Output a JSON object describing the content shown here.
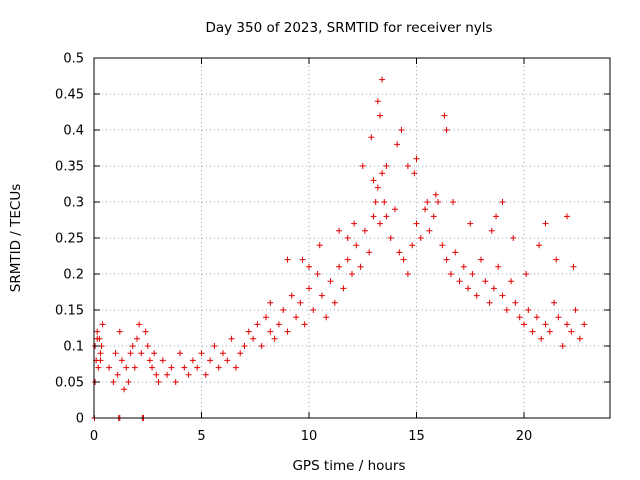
{
  "chart_data": {
    "type": "scatter",
    "title": "Day 350 of 2023, SRMTID for receiver nyls",
    "xlabel": "GPS time / hours",
    "ylabel": "SRMTID / TECUs",
    "xlim": [
      0,
      24
    ],
    "ylim": [
      0,
      0.5
    ],
    "xticks": [
      0,
      5,
      10,
      15,
      20
    ],
    "xtick_labels": [
      "0",
      "5",
      "10",
      "15",
      "20"
    ],
    "yticks": [
      0,
      0.05,
      0.1,
      0.15,
      0.2,
      0.25,
      0.3,
      0.35,
      0.4,
      0.45,
      0.5
    ],
    "ytick_labels": [
      "0",
      "0.05",
      "0.1",
      "0.15",
      "0.2",
      "0.25",
      "0.3",
      "0.35",
      "0.4",
      "0.45",
      "0.5"
    ],
    "grid": true,
    "marker": "+",
    "marker_color": "#e00000",
    "series": [
      {
        "name": "SRMTID",
        "x": [
          0.05,
          0.1,
          0.15,
          0.2,
          0.25,
          0.3,
          0.35,
          0.4,
          0.05,
          0.15,
          0.3,
          0.02,
          1.15,
          1.2,
          2.25,
          2.3,
          0.7,
          0.9,
          1.0,
          1.1,
          1.2,
          1.3,
          1.4,
          1.5,
          1.6,
          1.7,
          1.8,
          1.9,
          2.0,
          2.1,
          2.2,
          2.4,
          2.5,
          2.6,
          2.7,
          2.8,
          2.9,
          3.0,
          3.2,
          3.4,
          3.6,
          3.8,
          4.0,
          4.2,
          4.4,
          4.6,
          4.8,
          5.0,
          5.2,
          5.4,
          5.6,
          5.8,
          6.0,
          6.2,
          6.4,
          6.6,
          6.8,
          7.0,
          7.2,
          7.4,
          7.6,
          7.8,
          8.0,
          8.2,
          8.4,
          8.6,
          8.8,
          9.0,
          9.2,
          9.4,
          9.6,
          9.8,
          10.0,
          10.2,
          10.4,
          10.6,
          10.8,
          11.0,
          11.2,
          11.4,
          11.6,
          11.8,
          12.0,
          12.2,
          12.4,
          12.6,
          12.8,
          13.0,
          13.1,
          13.2,
          13.3,
          13.4,
          13.5,
          13.6,
          13.8,
          14.0,
          14.2,
          14.4,
          14.6,
          14.8,
          15.0,
          15.2,
          15.4,
          15.6,
          15.8,
          16.0,
          16.2,
          16.4,
          16.6,
          16.8,
          17.0,
          17.2,
          17.4,
          17.6,
          17.8,
          18.0,
          18.2,
          18.4,
          18.6,
          18.8,
          19.0,
          19.2,
          19.4,
          19.6,
          19.8,
          20.0,
          20.2,
          20.4,
          20.6,
          20.8,
          21.0,
          21.2,
          21.4,
          21.6,
          21.8,
          22.0,
          22.2,
          22.4,
          22.6,
          22.8,
          13.2,
          13.4,
          13.3,
          12.9,
          14.3,
          14.1,
          15.0,
          16.3,
          16.4,
          13.6,
          13.0,
          12.5,
          19.0,
          18.7,
          22.0,
          21.0,
          9.0,
          8.2,
          10.0,
          10.5,
          11.4,
          14.6,
          14.9,
          15.5,
          15.9,
          16.7,
          17.5,
          18.5,
          19.5,
          20.1,
          20.7,
          21.5,
          22.3,
          12.1,
          11.8,
          9.7
        ],
        "y": [
          0.1,
          0.08,
          0.12,
          0.07,
          0.11,
          0.09,
          0.1,
          0.13,
          0.05,
          0.11,
          0.08,
          0.0,
          0.0,
          0.0,
          0.0,
          0.0,
          0.07,
          0.05,
          0.09,
          0.06,
          0.12,
          0.08,
          0.04,
          0.07,
          0.05,
          0.09,
          0.1,
          0.07,
          0.11,
          0.13,
          0.09,
          0.12,
          0.1,
          0.08,
          0.07,
          0.09,
          0.06,
          0.05,
          0.08,
          0.06,
          0.07,
          0.05,
          0.09,
          0.07,
          0.06,
          0.08,
          0.07,
          0.09,
          0.06,
          0.08,
          0.1,
          0.07,
          0.09,
          0.08,
          0.11,
          0.07,
          0.09,
          0.1,
          0.12,
          0.11,
          0.13,
          0.1,
          0.14,
          0.12,
          0.11,
          0.13,
          0.15,
          0.12,
          0.17,
          0.14,
          0.16,
          0.13,
          0.18,
          0.15,
          0.2,
          0.17,
          0.14,
          0.19,
          0.16,
          0.21,
          0.18,
          0.22,
          0.2,
          0.24,
          0.21,
          0.26,
          0.23,
          0.28,
          0.3,
          0.32,
          0.27,
          0.34,
          0.3,
          0.28,
          0.25,
          0.29,
          0.23,
          0.22,
          0.2,
          0.24,
          0.27,
          0.25,
          0.29,
          0.26,
          0.28,
          0.3,
          0.24,
          0.22,
          0.2,
          0.23,
          0.19,
          0.21,
          0.18,
          0.2,
          0.17,
          0.22,
          0.19,
          0.16,
          0.18,
          0.21,
          0.17,
          0.15,
          0.19,
          0.16,
          0.14,
          0.13,
          0.15,
          0.12,
          0.14,
          0.11,
          0.13,
          0.12,
          0.16,
          0.14,
          0.1,
          0.13,
          0.12,
          0.15,
          0.11,
          0.13,
          0.44,
          0.47,
          0.42,
          0.39,
          0.4,
          0.38,
          0.36,
          0.42,
          0.4,
          0.35,
          0.33,
          0.35,
          0.3,
          0.28,
          0.28,
          0.27,
          0.22,
          0.16,
          0.21,
          0.24,
          0.26,
          0.35,
          0.34,
          0.3,
          0.31,
          0.3,
          0.27,
          0.26,
          0.25,
          0.2,
          0.24,
          0.22,
          0.21,
          0.27,
          0.25,
          0.22
        ]
      }
    ]
  }
}
